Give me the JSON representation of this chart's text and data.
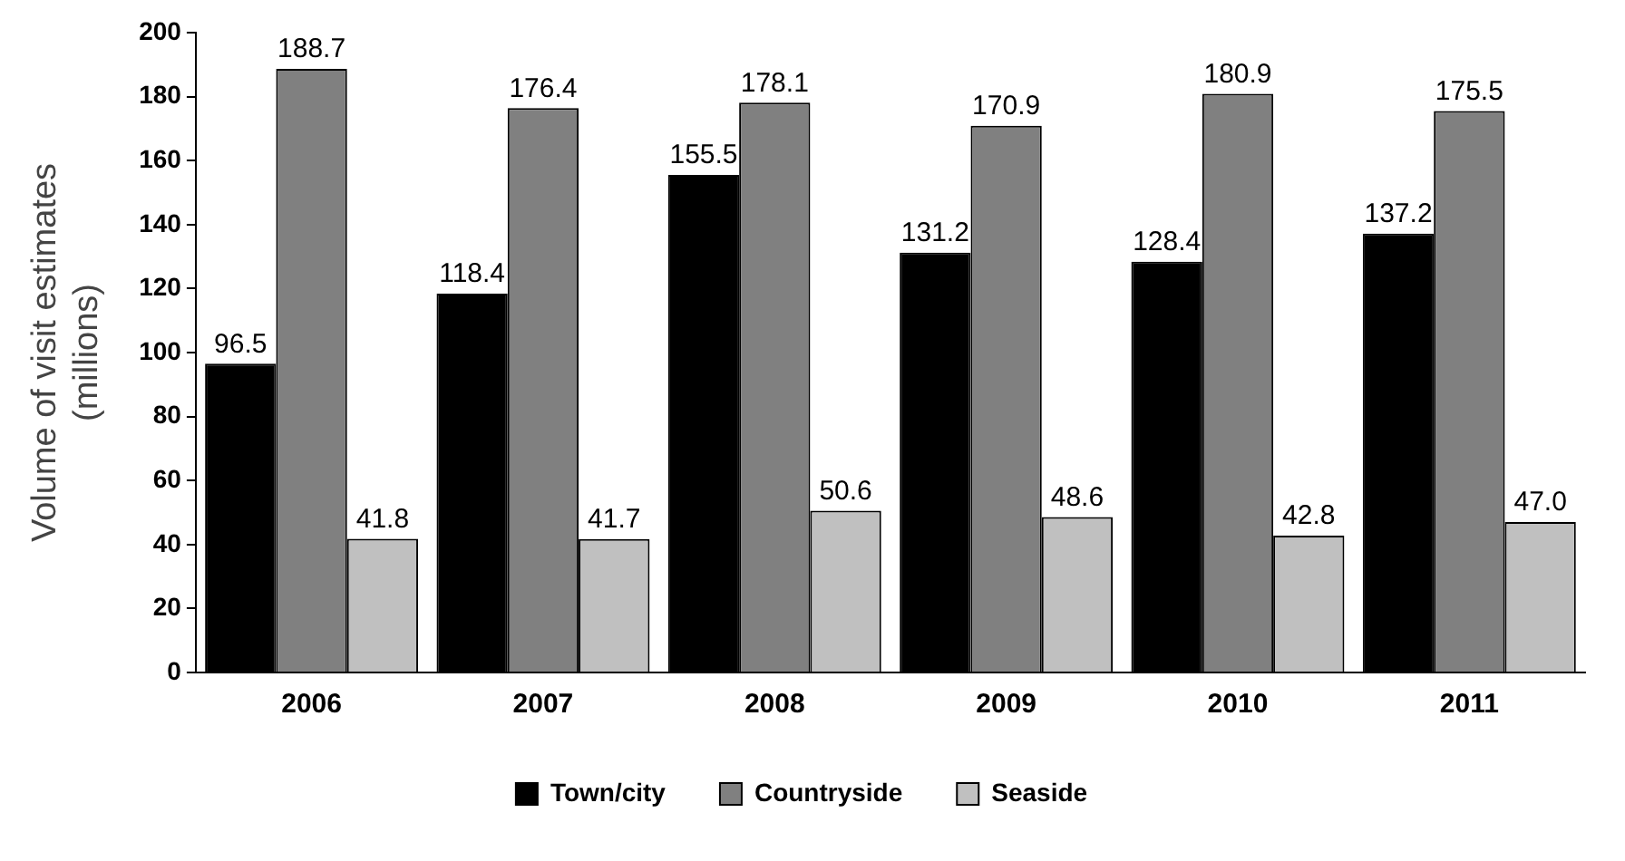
{
  "chart_data": {
    "type": "bar",
    "ylabel": "Volume of visit estimates (millions)",
    "categories": [
      "2006",
      "2007",
      "2008",
      "2009",
      "2010",
      "2011"
    ],
    "series": [
      {
        "name": "Town/city",
        "color": "#000000",
        "values": [
          96.5,
          118.4,
          155.5,
          131.2,
          128.4,
          137.2
        ],
        "value_labels": [
          "96.5",
          "118.4",
          "155.5",
          "131.2",
          "128.4",
          "137.2"
        ]
      },
      {
        "name": "Countryside",
        "color": "#808080",
        "values": [
          188.7,
          176.4,
          178.1,
          170.9,
          180.9,
          175.5
        ],
        "value_labels": [
          "188.7",
          "176.4",
          "178.1",
          "170.9",
          "180.9",
          "175.5"
        ]
      },
      {
        "name": "Seaside",
        "color": "#c0c0c0",
        "values": [
          41.8,
          41.7,
          50.6,
          48.6,
          42.8,
          47.0
        ],
        "value_labels": [
          "41.8",
          "41.7",
          "50.6",
          "48.6",
          "42.8",
          "47.0"
        ]
      }
    ],
    "ylim": [
      0,
      200
    ],
    "yticks": [
      0,
      20,
      40,
      60,
      80,
      100,
      120,
      140,
      160,
      180,
      200
    ],
    "grid": false,
    "legend": "bottom"
  }
}
